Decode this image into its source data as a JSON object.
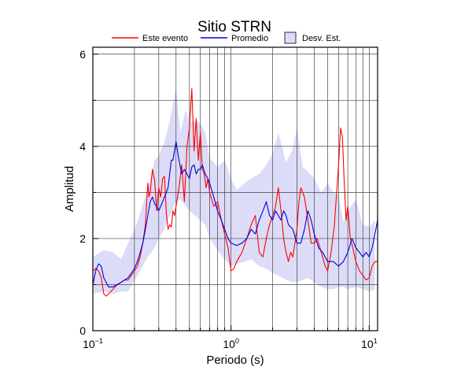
{
  "chart_data": {
    "type": "line",
    "title": "Sitio STRN",
    "xlabel": "Periodo (s)",
    "ylabel": "Amplitud",
    "x_scale": "log",
    "xlim": [
      0.1,
      11.5
    ],
    "ylim": [
      0,
      6.15
    ],
    "grid": true,
    "legend_position": "top",
    "x_ticks": [
      {
        "value": 0.1,
        "base": "10",
        "exp": "−1"
      },
      {
        "value": 1,
        "base": "10",
        "exp": "0"
      },
      {
        "value": 10,
        "base": "10",
        "exp": "1"
      }
    ],
    "y_ticks": [
      {
        "value": 0,
        "label": "0"
      },
      {
        "value": 2,
        "label": "2"
      },
      {
        "value": 4,
        "label": "4"
      },
      {
        "value": 6,
        "label": "6"
      }
    ],
    "legend": [
      {
        "label": "Este evento",
        "kind": "line",
        "color": "#ff0000"
      },
      {
        "label": "Promedio",
        "kind": "line",
        "color": "#0000dd"
      },
      {
        "label": "Desv. Est.",
        "kind": "box",
        "color": "#dcdcf8"
      }
    ],
    "colors": {
      "event": "#ff0000",
      "mean": "#0000dd",
      "band": "#dcdcf8"
    },
    "band": {
      "name": "Desv. Est.",
      "x": [
        0.1,
        0.12,
        0.14,
        0.16,
        0.18,
        0.2,
        0.22,
        0.25,
        0.28,
        0.3,
        0.33,
        0.36,
        0.4,
        0.43,
        0.47,
        0.5,
        0.55,
        0.6,
        0.65,
        0.7,
        0.8,
        0.9,
        1.0,
        1.1,
        1.25,
        1.4,
        1.6,
        1.8,
        2.0,
        2.2,
        2.5,
        2.8,
        3.0,
        3.3,
        3.6,
        4.0,
        4.5,
        5.0,
        5.5,
        6.0,
        6.5,
        7.0,
        8.0,
        9.0,
        10.0,
        11.0
      ],
      "upper": [
        1.6,
        1.75,
        1.7,
        1.55,
        1.9,
        2.2,
        2.55,
        3.1,
        3.7,
        3.8,
        4.1,
        4.55,
        5.25,
        4.3,
        4.8,
        4.5,
        4.55,
        4.5,
        4.3,
        3.75,
        3.55,
        3.7,
        3.3,
        3.05,
        3.2,
        3.3,
        3.4,
        3.6,
        3.85,
        4.3,
        3.65,
        3.95,
        4.4,
        3.55,
        3.45,
        3.3,
        3.0,
        3.2,
        3.0,
        2.95,
        2.35,
        2.6,
        2.85,
        2.3,
        2.25,
        2.4
      ],
      "lower": [
        0.8,
        0.85,
        0.8,
        0.85,
        0.85,
        1.1,
        1.3,
        1.6,
        1.8,
        2.0,
        2.2,
        2.5,
        2.8,
        2.85,
        2.7,
        2.6,
        2.5,
        2.4,
        2.3,
        2.0,
        1.75,
        1.55,
        1.4,
        1.45,
        1.5,
        1.55,
        1.4,
        1.35,
        1.25,
        1.2,
        1.1,
        1.05,
        1.05,
        1.1,
        1.15,
        1.05,
        0.95,
        0.9,
        0.9,
        0.95,
        0.95,
        0.9,
        0.95,
        0.9,
        0.85,
        0.9
      ]
    },
    "series": [
      {
        "name": "Este evento",
        "x": [
          0.1,
          0.105,
          0.11,
          0.115,
          0.12,
          0.125,
          0.13,
          0.14,
          0.15,
          0.16,
          0.17,
          0.18,
          0.19,
          0.2,
          0.21,
          0.22,
          0.23,
          0.24,
          0.25,
          0.255,
          0.26,
          0.27,
          0.28,
          0.29,
          0.3,
          0.31,
          0.32,
          0.33,
          0.34,
          0.35,
          0.36,
          0.37,
          0.38,
          0.39,
          0.4,
          0.42,
          0.44,
          0.46,
          0.48,
          0.5,
          0.52,
          0.54,
          0.56,
          0.58,
          0.6,
          0.62,
          0.64,
          0.66,
          0.68,
          0.7,
          0.75,
          0.8,
          0.85,
          0.9,
          0.95,
          1.0,
          1.05,
          1.1,
          1.2,
          1.3,
          1.4,
          1.5,
          1.6,
          1.7,
          1.8,
          1.9,
          2.0,
          2.1,
          2.2,
          2.3,
          2.4,
          2.5,
          2.6,
          2.7,
          2.8,
          2.9,
          3.0,
          3.1,
          3.2,
          3.4,
          3.6,
          3.8,
          4.0,
          4.2,
          4.4,
          4.6,
          4.8,
          5.0,
          5.3,
          5.6,
          6.0,
          6.2,
          6.4,
          6.6,
          6.8,
          7.0,
          7.3,
          7.6,
          8.0,
          8.5,
          9.0,
          9.5,
          10.0,
          10.5,
          11.0,
          11.5
        ],
        "y": [
          1.3,
          1.35,
          1.3,
          1.15,
          0.8,
          0.75,
          0.8,
          0.9,
          1.0,
          1.05,
          1.1,
          1.1,
          1.2,
          1.3,
          1.4,
          1.6,
          1.9,
          2.3,
          3.2,
          2.9,
          3.0,
          3.5,
          3.25,
          2.6,
          3.1,
          2.9,
          3.3,
          3.35,
          2.55,
          2.2,
          2.3,
          2.25,
          2.6,
          2.5,
          2.7,
          3.1,
          3.6,
          2.8,
          4.0,
          4.4,
          5.25,
          3.9,
          4.6,
          3.7,
          4.3,
          3.5,
          3.4,
          3.1,
          3.3,
          3.0,
          2.7,
          2.8,
          2.4,
          2.1,
          1.8,
          1.3,
          1.35,
          1.5,
          1.7,
          2.0,
          2.3,
          2.5,
          1.7,
          1.6,
          2.0,
          2.3,
          2.5,
          2.7,
          3.1,
          2.6,
          2.0,
          1.7,
          1.5,
          1.7,
          1.6,
          1.9,
          2.2,
          2.8,
          3.1,
          2.9,
          2.4,
          1.9,
          1.9,
          2.0,
          1.8,
          1.6,
          1.4,
          1.3,
          1.7,
          2.3,
          3.6,
          4.4,
          4.2,
          3.2,
          2.4,
          2.7,
          2.0,
          1.8,
          1.5,
          1.3,
          1.2,
          1.1,
          1.15,
          1.4,
          1.5,
          1.5
        ]
      },
      {
        "name": "Promedio",
        "x": [
          0.1,
          0.105,
          0.11,
          0.115,
          0.12,
          0.13,
          0.14,
          0.15,
          0.16,
          0.17,
          0.18,
          0.19,
          0.2,
          0.21,
          0.22,
          0.23,
          0.24,
          0.25,
          0.26,
          0.27,
          0.28,
          0.29,
          0.3,
          0.31,
          0.32,
          0.33,
          0.34,
          0.35,
          0.36,
          0.37,
          0.38,
          0.39,
          0.4,
          0.42,
          0.44,
          0.46,
          0.48,
          0.5,
          0.52,
          0.54,
          0.56,
          0.58,
          0.6,
          0.62,
          0.65,
          0.68,
          0.7,
          0.75,
          0.8,
          0.85,
          0.9,
          0.95,
          1.0,
          1.1,
          1.2,
          1.3,
          1.4,
          1.5,
          1.6,
          1.7,
          1.8,
          1.9,
          2.0,
          2.1,
          2.2,
          2.3,
          2.4,
          2.5,
          2.6,
          2.8,
          3.0,
          3.2,
          3.4,
          3.6,
          3.8,
          4.0,
          4.3,
          4.6,
          5.0,
          5.5,
          6.0,
          6.5,
          7.0,
          7.5,
          8.0,
          8.5,
          9.0,
          9.5,
          10.0,
          10.5,
          11.0,
          11.5
        ],
        "y": [
          1.0,
          1.3,
          1.45,
          1.4,
          1.15,
          0.95,
          0.95,
          1.0,
          1.05,
          1.1,
          1.15,
          1.25,
          1.35,
          1.5,
          1.7,
          1.9,
          2.2,
          2.5,
          2.8,
          2.9,
          2.75,
          2.7,
          2.6,
          2.7,
          2.8,
          2.9,
          3.0,
          3.1,
          3.4,
          3.7,
          3.7,
          3.9,
          4.1,
          3.7,
          3.4,
          3.5,
          3.4,
          3.3,
          3.55,
          3.6,
          3.4,
          3.5,
          3.5,
          3.6,
          3.4,
          3.3,
          3.2,
          2.9,
          2.6,
          2.4,
          2.2,
          2.0,
          1.9,
          1.85,
          1.9,
          2.0,
          2.2,
          2.1,
          2.4,
          2.6,
          2.8,
          2.5,
          2.4,
          2.6,
          2.5,
          2.4,
          2.6,
          2.5,
          2.3,
          2.2,
          1.9,
          1.9,
          2.2,
          2.6,
          2.4,
          2.1,
          1.8,
          1.7,
          1.5,
          1.5,
          1.4,
          1.5,
          1.7,
          2.0,
          1.8,
          1.7,
          1.6,
          1.7,
          1.6,
          1.8,
          2.1,
          2.4
        ]
      }
    ]
  }
}
